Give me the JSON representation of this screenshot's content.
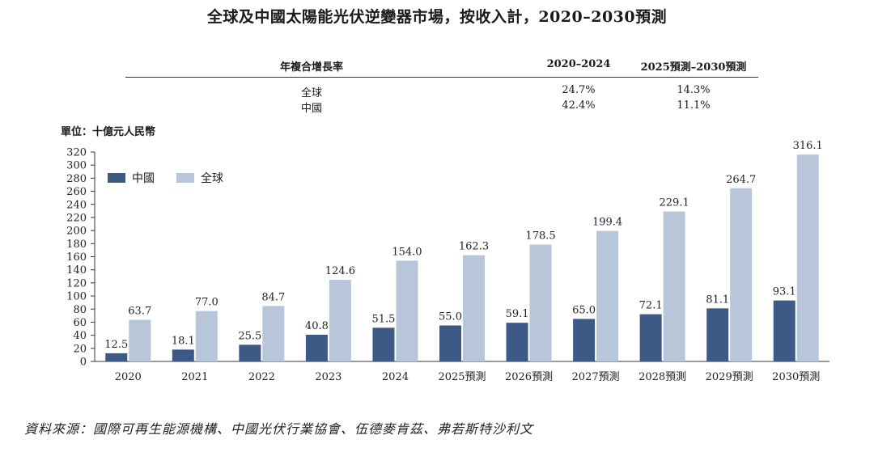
{
  "chart_data": {
    "type": "bar",
    "title": "全球及中國太陽能光伏逆變器市場，按收入計，2020–2030預測",
    "ylabel": "單位：十億元人民幣",
    "categories": [
      "2020",
      "2021",
      "2022",
      "2023",
      "2024",
      "2025預測",
      "2026預測",
      "2027預測",
      "2028預測",
      "2029預測",
      "2030預測"
    ],
    "series": [
      {
        "name": "中國",
        "color": "#3d5a87",
        "values": [
          12.5,
          18.1,
          25.5,
          40.8,
          51.5,
          55.0,
          59.1,
          65.0,
          72.1,
          81.1,
          93.1
        ]
      },
      {
        "name": "全球",
        "color": "#b7c6d9",
        "values": [
          63.7,
          77.0,
          84.7,
          124.6,
          154.0,
          162.3,
          178.5,
          199.4,
          229.1,
          264.7,
          316.1
        ]
      }
    ],
    "ylim": [
      0,
      320
    ],
    "yticks": [
      0,
      20,
      40,
      60,
      80,
      100,
      120,
      140,
      160,
      180,
      200,
      220,
      240,
      260,
      280,
      300,
      320
    ],
    "legend_position": "top-left"
  },
  "cagr_table": {
    "header": {
      "label": "年複合增長率",
      "col1": "2020–2024",
      "col2": "2025預測–2030預測"
    },
    "rows": [
      {
        "label": "全球",
        "col1": "24.7%",
        "col2": "14.3%"
      },
      {
        "label": "中國",
        "col1": "42.4%",
        "col2": "11.1%"
      }
    ]
  },
  "source": "資料來源：國際可再生能源機構、中國光伏行業協會、伍德麥肯茲、弗若斯特沙利文"
}
